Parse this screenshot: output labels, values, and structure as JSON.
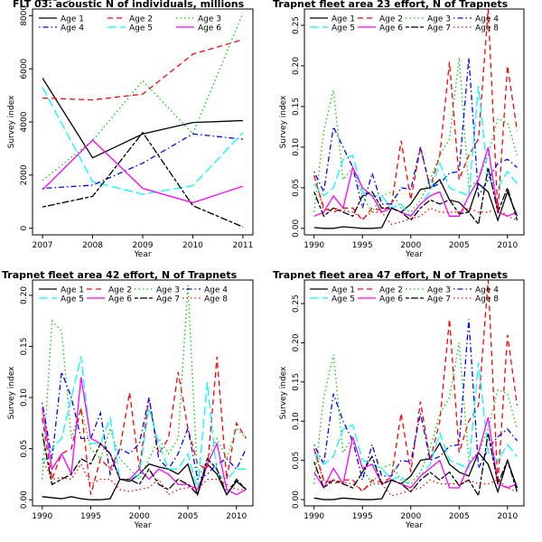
{
  "chart_data": [
    {
      "type": "line",
      "title": "FLT 03:   acoustic   N of individuals, millions",
      "xlabel": "Year",
      "ylabel": "Survey index",
      "xlim": [
        2006.8,
        2011.2
      ],
      "ylim": [
        -250,
        8250
      ],
      "xticks": [
        2007,
        2008,
        2009,
        2010,
        2011
      ],
      "yticks": [
        0,
        2000,
        4000,
        6000,
        8000
      ],
      "ytick_labels": [
        "0",
        "2000",
        "4000",
        "6000",
        "8000"
      ],
      "legend": {
        "placement": "top",
        "columns": 3
      },
      "x": [
        2007,
        2008,
        2009,
        2010,
        2011
      ],
      "series": [
        {
          "name": "Age 1",
          "color": "#000000",
          "dash": "solid",
          "values": [
            5650,
            2650,
            3550,
            3980,
            4050
          ]
        },
        {
          "name": "Age 2",
          "color": "#ff0000",
          "dash": "dashed",
          "values": [
            4900,
            4830,
            5050,
            6550,
            7100
          ]
        },
        {
          "name": "Age 3",
          "color": "#00cc00",
          "dash": "dotted",
          "values": [
            1800,
            3300,
            5550,
            3550,
            8100
          ]
        },
        {
          "name": "Age 4",
          "color": "#0000ff",
          "dash": "dotdash",
          "values": [
            1500,
            1620,
            2450,
            3550,
            3350
          ]
        },
        {
          "name": "Age 5",
          "color": "#00ffff",
          "dash": "longdash",
          "values": [
            5300,
            1750,
            1280,
            1600,
            3600
          ]
        },
        {
          "name": "Age 6",
          "color": "#ff00ff",
          "dash": "solid",
          "values": [
            1450,
            3320,
            1500,
            960,
            1580
          ]
        },
        {
          "name": "Age 7",
          "color": "#000000",
          "dash": "twodash",
          "values": [
            800,
            1200,
            3600,
            850,
            50
          ]
        }
      ]
    },
    {
      "type": "line",
      "title": "Trapnet fleet area 23  effort, N of Trapnets",
      "xlabel": "Year",
      "ylabel": "Survey index",
      "xlim": [
        1989,
        2011.7
      ],
      "ylim": [
        -0.008,
        0.27
      ],
      "xticks": [
        1990,
        1995,
        2000,
        2005,
        2010
      ],
      "yticks": [
        0,
        0.05,
        0.1,
        0.15,
        0.2,
        0.25
      ],
      "ytick_labels": [
        "0.00",
        "0.05",
        "0.10",
        "0.15",
        "0.20",
        "0.25"
      ],
      "legend": {
        "placement": "top",
        "columns": 4
      },
      "x": [
        1990,
        1991,
        1992,
        1993,
        1994,
        1995,
        1996,
        1997,
        1998,
        1999,
        2000,
        2001,
        2002,
        2003,
        2004,
        2005,
        2006,
        2007,
        2008,
        2009,
        2010,
        2011
      ],
      "series": [
        {
          "name": "Age 1",
          "color": "#000000",
          "dash": "solid",
          "values": [
            0.001,
            0,
            0,
            0.002,
            0.001,
            0,
            0,
            0.001,
            0.025,
            0.02,
            0.03,
            0.048,
            0.05,
            0.06,
            0.035,
            0.032,
            0.02,
            0.055,
            0.045,
            0.01,
            0.045,
            0.015
          ]
        },
        {
          "name": "Age 2",
          "color": "#ff0000",
          "dash": "dashed",
          "values": [
            0.065,
            0.025,
            0.02,
            0.025,
            0.025,
            0.01,
            0.025,
            0.022,
            0.028,
            0.108,
            0.035,
            0.1,
            0.05,
            0.09,
            0.205,
            0.06,
            0.09,
            0.11,
            0.27,
            0.02,
            0.2,
            0.12
          ]
        },
        {
          "name": "Age 3",
          "color": "#00cc00",
          "dash": "dotted",
          "values": [
            0.02,
            0.12,
            0.17,
            0.06,
            0.075,
            0.04,
            0.02,
            0.04,
            0.045,
            0.025,
            0.02,
            0.035,
            0.06,
            0.09,
            0.11,
            0.21,
            0.05,
            0.06,
            0.09,
            0.135,
            0.13,
            0.09
          ]
        },
        {
          "name": "Age 4",
          "color": "#0000ff",
          "dash": "dotdash",
          "values": [
            0.07,
            0.045,
            0.125,
            0.1,
            0.075,
            0.025,
            0.068,
            0.03,
            0.03,
            0.05,
            0.048,
            0.1,
            0.05,
            0.055,
            0.068,
            0.07,
            0.21,
            0.04,
            0.06,
            0.08,
            0.085,
            0.075
          ]
        },
        {
          "name": "Age 5",
          "color": "#00ffff",
          "dash": "longdash",
          "values": [
            0.055,
            0.04,
            0.05,
            0.085,
            0.09,
            0.045,
            0.04,
            0.04,
            0.025,
            0.03,
            0.015,
            0.03,
            0.045,
            0.08,
            0.05,
            0.045,
            0.04,
            0.175,
            0.06,
            0.05,
            0.07,
            0.055
          ]
        },
        {
          "name": "Age 6",
          "color": "#ff00ff",
          "dash": "solid",
          "values": [
            0.015,
            0.02,
            0.04,
            0.025,
            0.075,
            0.05,
            0.04,
            0.02,
            0.025,
            0.02,
            0.015,
            0.03,
            0.04,
            0.045,
            0.015,
            0.015,
            0.04,
            0.06,
            0.1,
            0.02,
            0.015,
            0.02
          ]
        },
        {
          "name": "Age 7",
          "color": "#000000",
          "dash": "twodash",
          "values": [
            0.045,
            0.015,
            0.025,
            0.02,
            0.015,
            0.04,
            0.045,
            0.025,
            0.025,
            0.02,
            0.01,
            0.025,
            0.035,
            0.03,
            0.035,
            0.018,
            0.02,
            0.005,
            0.075,
            0.02,
            0.05,
            0.01
          ]
        },
        {
          "name": "Age 8",
          "color": "#ff0000",
          "dash": "dotted",
          "values": [
            0.065,
            0.022,
            0.025,
            0.022,
            0.02,
            0.012,
            0.02,
            0.02,
            0.005,
            0.008,
            0.012,
            0.015,
            0.025,
            0.02,
            0.02,
            0.02,
            0.025,
            0.02,
            0.02,
            0.025,
            0.015,
            0.01
          ]
        }
      ]
    },
    {
      "type": "line",
      "title": "Trapnet fleet area 42  effort, N of Trapnets",
      "xlabel": "Year",
      "ylabel": "Survey index",
      "xlim": [
        1989,
        2011.7
      ],
      "ylim": [
        -0.006,
        0.215
      ],
      "xticks": [
        1990,
        1995,
        2000,
        2005,
        2010
      ],
      "yticks": [
        0,
        0.05,
        0.1,
        0.15,
        0.2
      ],
      "ytick_labels": [
        "0.00",
        "0.05",
        "0.10",
        "0.15",
        "0.20"
      ],
      "legend": {
        "placement": "top",
        "columns": 4
      },
      "x": [
        1990,
        1991,
        1992,
        1993,
        1994,
        1995,
        1996,
        1997,
        1998,
        1999,
        2000,
        2001,
        2002,
        2003,
        2004,
        2005,
        2006,
        2007,
        2008,
        2009,
        2010,
        2011
      ],
      "series": [
        {
          "name": "Age 1",
          "color": "#000000",
          "dash": "solid",
          "values": [
            0.003,
            0.002,
            0.001,
            0.003,
            0.001,
            0,
            0,
            0.001,
            0.02,
            0.018,
            0.025,
            0.035,
            0.032,
            0.03,
            0.025,
            0.035,
            0.005,
            0.035,
            0.025,
            0.005,
            0.018,
            0.01
          ]
        },
        {
          "name": "Age 2",
          "color": "#ff0000",
          "dash": "dashed",
          "values": [
            0.08,
            0.02,
            0.045,
            0.05,
            0.09,
            0.005,
            0.04,
            0.03,
            0.05,
            0.105,
            0.03,
            0.1,
            0.045,
            0.06,
            0.125,
            0.07,
            0.035,
            0.03,
            0.14,
            0.02,
            0.075,
            0.06
          ]
        },
        {
          "name": "Age 3",
          "color": "#00cc00",
          "dash": "dotted",
          "values": [
            0.02,
            0.175,
            0.165,
            0.06,
            0.09,
            0.05,
            0.04,
            0.07,
            0.04,
            0.03,
            0.02,
            0.04,
            0.06,
            0.045,
            0.06,
            0.21,
            0.02,
            0.04,
            0.06,
            0.04,
            0.07,
            0.06
          ]
        },
        {
          "name": "Age 4",
          "color": "#0000ff",
          "dash": "dotdash",
          "values": [
            0.095,
            0.04,
            0.125,
            0.1,
            0.06,
            0.06,
            0.085,
            0.025,
            0.05,
            0.045,
            0.055,
            0.1,
            0.04,
            0.03,
            0.045,
            0.07,
            0.02,
            0.025,
            0.035,
            0.04,
            0.03,
            0.05
          ]
        },
        {
          "name": "Age 5",
          "color": "#00ffff",
          "dash": "longdash",
          "values": [
            0.035,
            0.05,
            0.06,
            0.1,
            0.14,
            0.055,
            0.055,
            0.08,
            0.02,
            0.02,
            0.025,
            0.09,
            0.055,
            0.03,
            0.03,
            0.045,
            0.01,
            0.115,
            0.025,
            0.02,
            0.03,
            0.03
          ]
        },
        {
          "name": "Age 6",
          "color": "#ff00ff",
          "dash": "solid",
          "values": [
            0.09,
            0.03,
            0.045,
            0.025,
            0.12,
            0.06,
            0.055,
            0.045,
            0.02,
            0.02,
            0.03,
            0.02,
            0.03,
            0.025,
            0.015,
            0.015,
            0.01,
            0.035,
            0.055,
            0.01,
            0.005,
            0.01
          ]
        },
        {
          "name": "Age 7",
          "color": "#000000",
          "dash": "twodash",
          "values": [
            0.065,
            0.015,
            0.02,
            0.025,
            0.04,
            0.035,
            0.055,
            0.045,
            0.02,
            0.02,
            0.015,
            0.03,
            0.015,
            0.01,
            0.02,
            0.015,
            0.005,
            0.04,
            0.03,
            0.005,
            0.02,
            0.01
          ]
        },
        {
          "name": "Age 8",
          "color": "#ff0000",
          "dash": "dotted",
          "values": [
            0.04,
            0.02,
            0.022,
            0.02,
            0.035,
            0.015,
            0.02,
            0.02,
            0.01,
            0.008,
            0.01,
            0.012,
            0.02,
            0.005,
            0.01,
            0.012,
            0.01,
            0.02,
            0.02,
            0.015,
            0.01,
            0.01
          ]
        }
      ]
    },
    {
      "type": "line",
      "title": "Trapnet fleet area 47  effort, N of Trapnets",
      "xlabel": "Year",
      "ylabel": "Survey index",
      "xlim": [
        1989,
        2011.7
      ],
      "ylim": [
        -0.008,
        0.28
      ],
      "xticks": [
        1990,
        1995,
        2000,
        2005,
        2010
      ],
      "yticks": [
        0,
        0.05,
        0.1,
        0.15,
        0.2,
        0.25
      ],
      "ytick_labels": [
        "0.00",
        "0.05",
        "0.10",
        "0.15",
        "0.20",
        "0.25"
      ],
      "legend": {
        "placement": "top",
        "columns": 4
      },
      "x": [
        1990,
        1991,
        1992,
        1993,
        1994,
        1995,
        1996,
        1997,
        1998,
        1999,
        2000,
        2001,
        2002,
        2003,
        2004,
        2005,
        2006,
        2007,
        2008,
        2009,
        2010,
        2011
      ],
      "series": [
        {
          "name": "Age 1",
          "color": "#000000",
          "dash": "solid",
          "values": [
            0.002,
            0,
            0,
            0.002,
            0.001,
            0,
            0,
            0.001,
            0.025,
            0.02,
            0.03,
            0.05,
            0.052,
            0.072,
            0.045,
            0.035,
            0.03,
            0.06,
            0.045,
            0.01,
            0.05,
            0.015
          ]
        },
        {
          "name": "Age 2",
          "color": "#ff0000",
          "dash": "dashed",
          "values": [
            0.065,
            0.025,
            0.02,
            0.025,
            0.025,
            0.01,
            0.025,
            0.022,
            0.028,
            0.11,
            0.035,
            0.125,
            0.05,
            0.1,
            0.23,
            0.06,
            0.1,
            0.12,
            0.28,
            0.02,
            0.21,
            0.12
          ]
        },
        {
          "name": "Age 3",
          "color": "#00cc00",
          "dash": "dotted",
          "values": [
            0.02,
            0.13,
            0.185,
            0.06,
            0.08,
            0.04,
            0.02,
            0.04,
            0.045,
            0.025,
            0.02,
            0.035,
            0.065,
            0.11,
            0.13,
            0.2,
            0.05,
            0.06,
            0.09,
            0.14,
            0.135,
            0.09
          ]
        },
        {
          "name": "Age 4",
          "color": "#0000ff",
          "dash": "dotdash",
          "values": [
            0.07,
            0.045,
            0.135,
            0.1,
            0.075,
            0.025,
            0.07,
            0.03,
            0.03,
            0.05,
            0.048,
            0.11,
            0.05,
            0.055,
            0.068,
            0.07,
            0.23,
            0.04,
            0.065,
            0.08,
            0.09,
            0.075
          ]
        },
        {
          "name": "Age 5",
          "color": "#00ffff",
          "dash": "longdash",
          "values": [
            0.06,
            0.045,
            0.055,
            0.09,
            0.095,
            0.05,
            0.045,
            0.04,
            0.025,
            0.03,
            0.015,
            0.03,
            0.045,
            0.085,
            0.05,
            0.045,
            0.04,
            0.175,
            0.06,
            0.05,
            0.07,
            0.055
          ]
        },
        {
          "name": "Age 6",
          "color": "#ff00ff",
          "dash": "solid",
          "values": [
            0.035,
            0.015,
            0.04,
            0.02,
            0.08,
            0.04,
            0.045,
            0.02,
            0.025,
            0.02,
            0.015,
            0.03,
            0.04,
            0.05,
            0.015,
            0.015,
            0.045,
            0.06,
            0.105,
            0.02,
            0.015,
            0.02
          ]
        },
        {
          "name": "Age 7",
          "color": "#000000",
          "dash": "twodash",
          "values": [
            0.048,
            0.015,
            0.025,
            0.02,
            0.015,
            0.035,
            0.055,
            0.02,
            0.025,
            0.02,
            0.01,
            0.025,
            0.035,
            0.025,
            0.035,
            0.018,
            0.025,
            0.005,
            0.085,
            0.02,
            0.05,
            0.01
          ]
        },
        {
          "name": "Age 8",
          "color": "#ff0000",
          "dash": "dotted",
          "values": [
            0.065,
            0.022,
            0.025,
            0.022,
            0.02,
            0.012,
            0.02,
            0.02,
            0.005,
            0.008,
            0.012,
            0.015,
            0.025,
            0.02,
            0.02,
            0.02,
            0.025,
            0.02,
            0.02,
            0.025,
            0.015,
            0.01
          ]
        }
      ]
    }
  ]
}
